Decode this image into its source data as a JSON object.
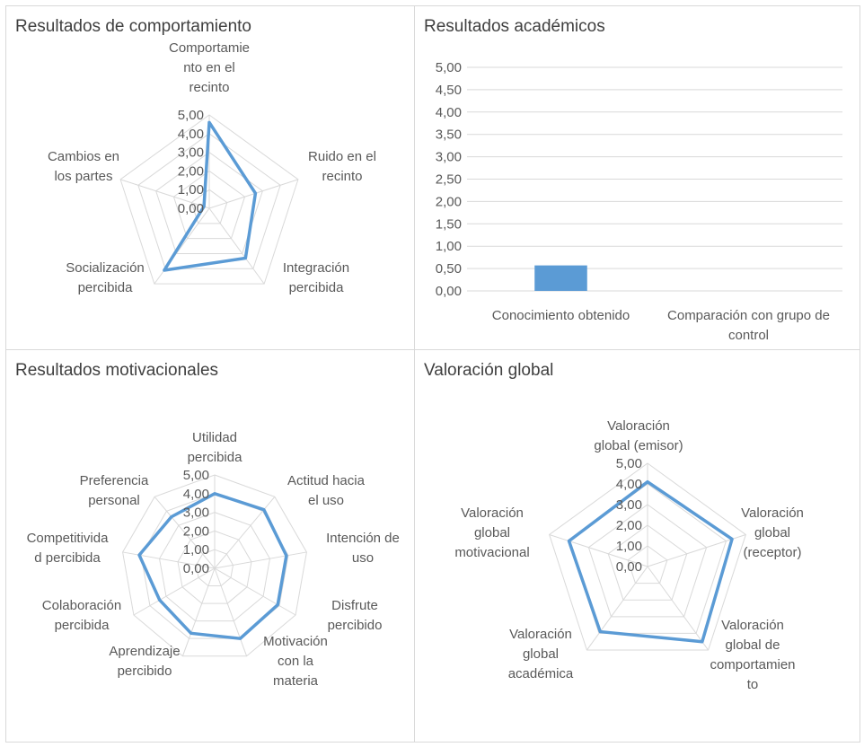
{
  "colors": {
    "series": "#5b9bd5",
    "grid": "#d9d9d9",
    "text": "#595959"
  },
  "chart_data": [
    {
      "type": "radar",
      "title": "Resultados de comportamiento",
      "ticks": [
        "0,00",
        "1,00",
        "2,00",
        "3,00",
        "4,00",
        "5,00"
      ],
      "rlim": [
        0,
        5
      ],
      "categories": [
        [
          "Comportamie",
          "nto en el",
          "recinto"
        ],
        [
          "Ruido en el",
          "recinto"
        ],
        [
          "Integración",
          "percibida"
        ],
        [
          "Socialización",
          "percibida"
        ],
        [
          "Cambios en",
          "los partes"
        ]
      ],
      "values": [
        4.6,
        2.6,
        3.3,
        4.1,
        0.3
      ]
    },
    {
      "type": "bar",
      "title": "Resultados académicos",
      "categories": [
        [
          "Conocimiento obtenido"
        ],
        [
          "Comparación con grupo de",
          "control"
        ]
      ],
      "values": [
        0.57,
        0
      ],
      "yticks": [
        "0,00",
        "0,50",
        "1,00",
        "1,50",
        "2,00",
        "2,50",
        "3,00",
        "3,50",
        "4,00",
        "4,50",
        "5,00"
      ],
      "ylim": [
        0,
        5
      ]
    },
    {
      "type": "radar",
      "title": "Resultados motivacionales",
      "ticks": [
        "0,00",
        "1,00",
        "2,00",
        "3,00",
        "4,00",
        "5,00"
      ],
      "rlim": [
        0,
        5
      ],
      "categories": [
        [
          "Utilidad",
          "percibida"
        ],
        [
          "Actitud hacia",
          "el uso"
        ],
        [
          "Intención de",
          "uso"
        ],
        [
          "Disfrute",
          "percibido"
        ],
        [
          "Motivación",
          "con la",
          "materia"
        ],
        [
          "Aprendizaje",
          "percibido"
        ],
        [
          "Colaboración",
          "percibida"
        ],
        [
          "Competitivida",
          "d percibida"
        ],
        [
          "Preferencia",
          "personal"
        ]
      ],
      "values": [
        4.0,
        4.1,
        3.9,
        3.9,
        4.0,
        3.7,
        3.4,
        4.1,
        3.6
      ]
    },
    {
      "type": "radar",
      "title": "Valoración global",
      "ticks": [
        "0,00",
        "1,00",
        "2,00",
        "3,00",
        "4,00",
        "5,00"
      ],
      "rlim": [
        0,
        5
      ],
      "categories": [
        [
          "Valoración",
          "global (emisor)"
        ],
        [
          "Valoración",
          "global",
          "(receptor)"
        ],
        [
          "Valoración",
          "global de",
          "comportamien",
          "to"
        ],
        [
          "Valoración",
          "global",
          "académica"
        ],
        [
          "Valoración",
          "global",
          "motivacional"
        ]
      ],
      "values": [
        4.1,
        4.3,
        4.5,
        3.9,
        4.0
      ]
    }
  ]
}
